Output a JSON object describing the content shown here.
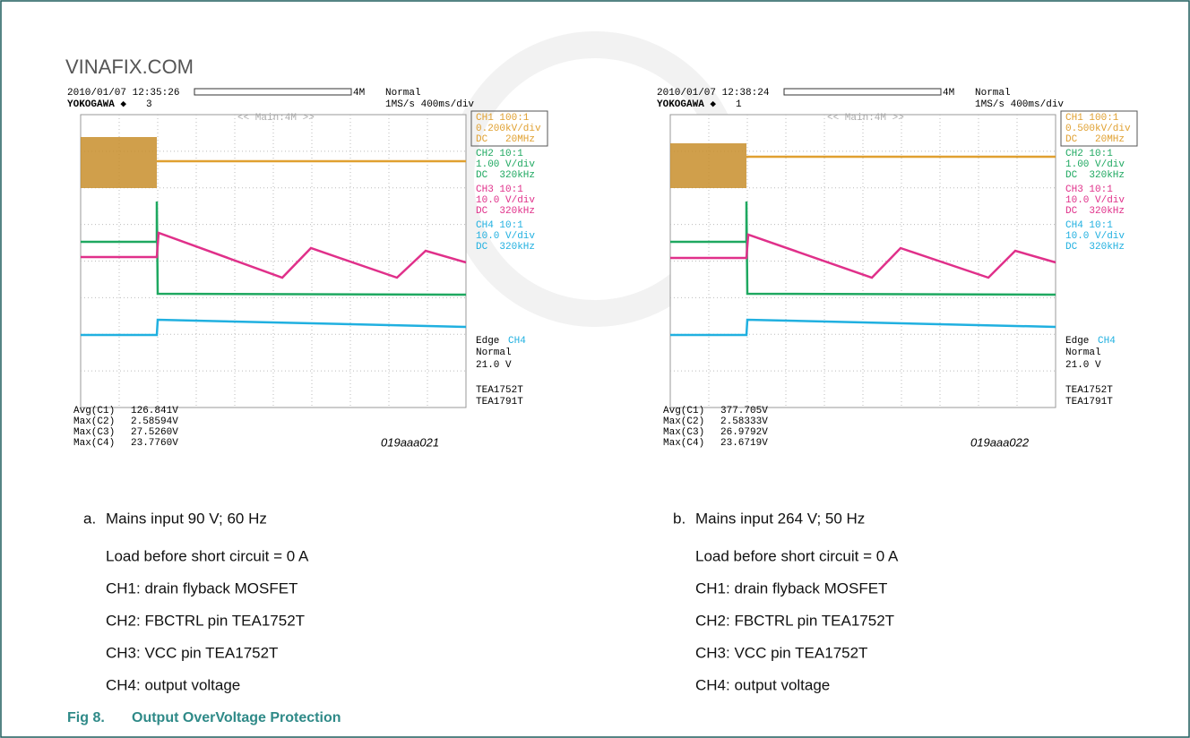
{
  "watermark": "VINAFIX.COM",
  "panels": [
    {
      "label": "a.",
      "caption": "Mains input 90 V; 60 Hz",
      "notes": [
        "Load before short circuit = 0 A",
        "CH1: drain flyback MOSFET",
        "CH2: FBCTRL pin TEA1752T",
        "CH3: VCC pin TEA1752T",
        "CH4: output voltage"
      ],
      "scope": {
        "timestamp": "2010/01/07 12:35:26",
        "brand": "YOKOGAWA ◆",
        "count": "3",
        "memory": "4M",
        "mode": "Normal",
        "rate": "1MS/s 400ms/div",
        "zoom": "<< Main:4M >>",
        "channels": [
          {
            "name": "CH1 100:1",
            "scale": "0.200kV/div",
            "coupling": "DC   20MHz",
            "color": "#e0a030"
          },
          {
            "name": "CH2 10:1",
            "scale": "1.00 V/div",
            "coupling": "DC  320kHz",
            "color": "#1ea860"
          },
          {
            "name": "CH3 10:1",
            "scale": "10.0 V/div",
            "coupling": "DC  320kHz",
            "color": "#e0308a"
          },
          {
            "name": "CH4 10:1",
            "scale": "10.0 V/div",
            "coupling": "DC  320kHz",
            "color": "#20b0e0"
          }
        ],
        "trigger": {
          "type": "Edge",
          "source": "CH4",
          "mode": "Normal",
          "level": "21.0 V"
        },
        "devices": [
          "TEA1752T",
          "TEA1791T"
        ],
        "measurements": [
          {
            "name": "Avg(C1)",
            "value": "126.841V"
          },
          {
            "name": "Max(C2)",
            "value": "2.58594V"
          },
          {
            "name": "Max(C3)",
            "value": "27.5260V"
          },
          {
            "name": "Max(C4)",
            "value": "23.7760V"
          }
        ],
        "code": "019aaa021"
      }
    },
    {
      "label": "b.",
      "caption": "Mains input 264 V; 50 Hz",
      "notes": [
        "Load before short circuit = 0 A",
        "CH1: drain flyback MOSFET",
        "CH2: FBCTRL pin TEA1752T",
        "CH3: VCC pin TEA1752T",
        "CH4: output voltage"
      ],
      "scope": {
        "timestamp": "2010/01/07 12:38:24",
        "brand": "YOKOGAWA ◆",
        "count": "1",
        "memory": "4M",
        "mode": "Normal",
        "rate": "1MS/s 400ms/div",
        "zoom": "<< Main:4M >>",
        "channels": [
          {
            "name": "CH1 100:1",
            "scale": "0.500kV/div",
            "coupling": "DC   20MHz",
            "color": "#e0a030"
          },
          {
            "name": "CH2 10:1",
            "scale": "1.00 V/div",
            "coupling": "DC  320kHz",
            "color": "#1ea860"
          },
          {
            "name": "CH3 10:1",
            "scale": "10.0 V/div",
            "coupling": "DC  320kHz",
            "color": "#e0308a"
          },
          {
            "name": "CH4 10:1",
            "scale": "10.0 V/div",
            "coupling": "DC  320kHz",
            "color": "#20b0e0"
          }
        ],
        "trigger": {
          "type": "Edge",
          "source": "CH4",
          "mode": "Normal",
          "level": "21.0 V"
        },
        "devices": [
          "TEA1752T",
          "TEA1791T"
        ],
        "measurements": [
          {
            "name": "Avg(C1)",
            "value": "377.705V"
          },
          {
            "name": "Max(C2)",
            "value": "2.58333V"
          },
          {
            "name": "Max(C3)",
            "value": "26.9792V"
          },
          {
            "name": "Max(C4)",
            "value": "23.6719V"
          }
        ],
        "code": "019aaa022"
      }
    }
  ],
  "figure": {
    "number": "Fig 8.",
    "title": "Output OverVoltage Protection"
  }
}
